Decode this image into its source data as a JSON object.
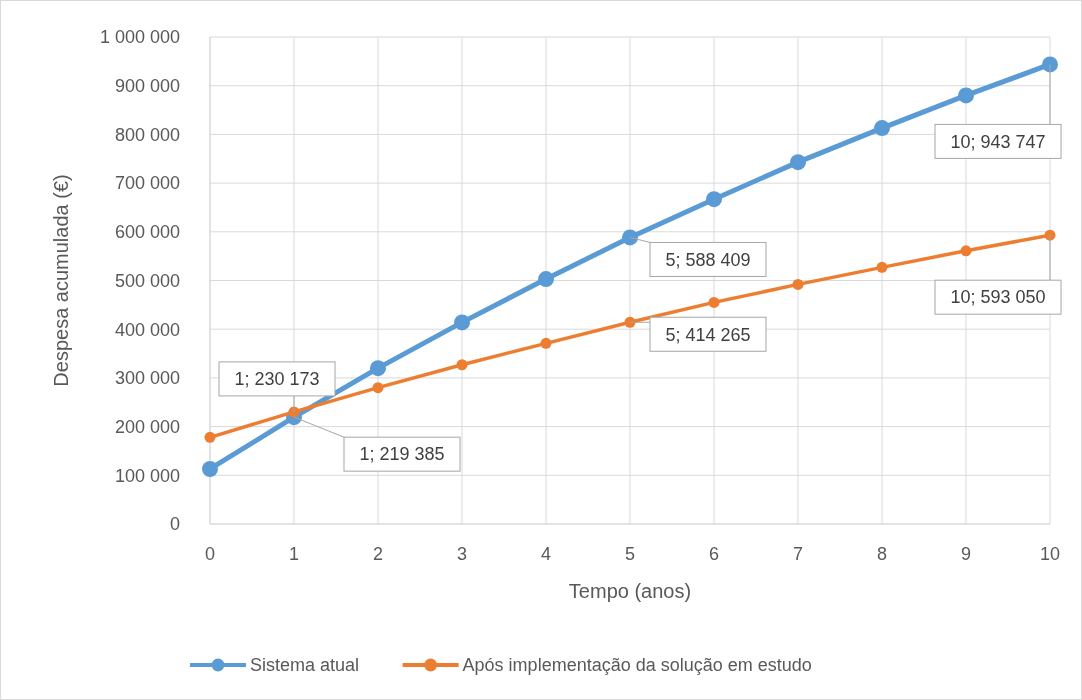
{
  "chart_data": {
    "type": "line",
    "xlabel": "Tempo (anos)",
    "ylabel": "Despesa acumulada (€)",
    "x": [
      0,
      1,
      2,
      3,
      4,
      5,
      6,
      7,
      8,
      9,
      10
    ],
    "series": [
      {
        "name": "Sistema atual",
        "color": "#5b9bd5",
        "values": [
          113000,
          219385,
          320000,
          414000,
          503000,
          588409,
          667000,
          743000,
          813000,
          880000,
          943747
        ]
      },
      {
        "name": "Após implementação da solução em estudo",
        "color": "#ed7d31",
        "values": [
          178000,
          230173,
          280000,
          327000,
          371000,
          414265,
          455000,
          492000,
          527000,
          561000,
          593050
        ]
      }
    ],
    "xlim": [
      0,
      10
    ],
    "xticks": [
      0,
      1,
      2,
      3,
      4,
      5,
      6,
      7,
      8,
      9,
      10
    ],
    "ylim": [
      0,
      1000000
    ],
    "yticks": [
      0,
      {
        "value": 100000,
        "label": "100 000"
      },
      {
        "value": 200000,
        "label": "200 000"
      },
      {
        "value": 300000,
        "label": "300 000"
      },
      {
        "value": 400000,
        "label": "400 000"
      },
      {
        "value": 500000,
        "label": "500 000"
      },
      {
        "value": 600000,
        "label": "600 000"
      },
      {
        "value": 700000,
        "label": "700 000"
      },
      {
        "value": 800000,
        "label": "800 000"
      },
      {
        "value": 900000,
        "label": "900 000"
      },
      {
        "value": 1000000,
        "label": "1 000 000"
      }
    ],
    "annotations": [
      {
        "text": "1; 230 173",
        "x": 1,
        "y": 230173
      },
      {
        "text": "1; 219 385",
        "x": 1,
        "y": 219385
      },
      {
        "text": "5; 588 409",
        "x": 5,
        "y": 588409
      },
      {
        "text": "5; 414 265",
        "x": 5,
        "y": 414265
      },
      {
        "text": "10; 943 747",
        "x": 10,
        "y": 943747
      },
      {
        "text": "10; 593 050",
        "x": 10,
        "y": 593050
      }
    ],
    "grid": true,
    "legend": "bottom",
    "marker": "circle",
    "line_style": "solid"
  }
}
